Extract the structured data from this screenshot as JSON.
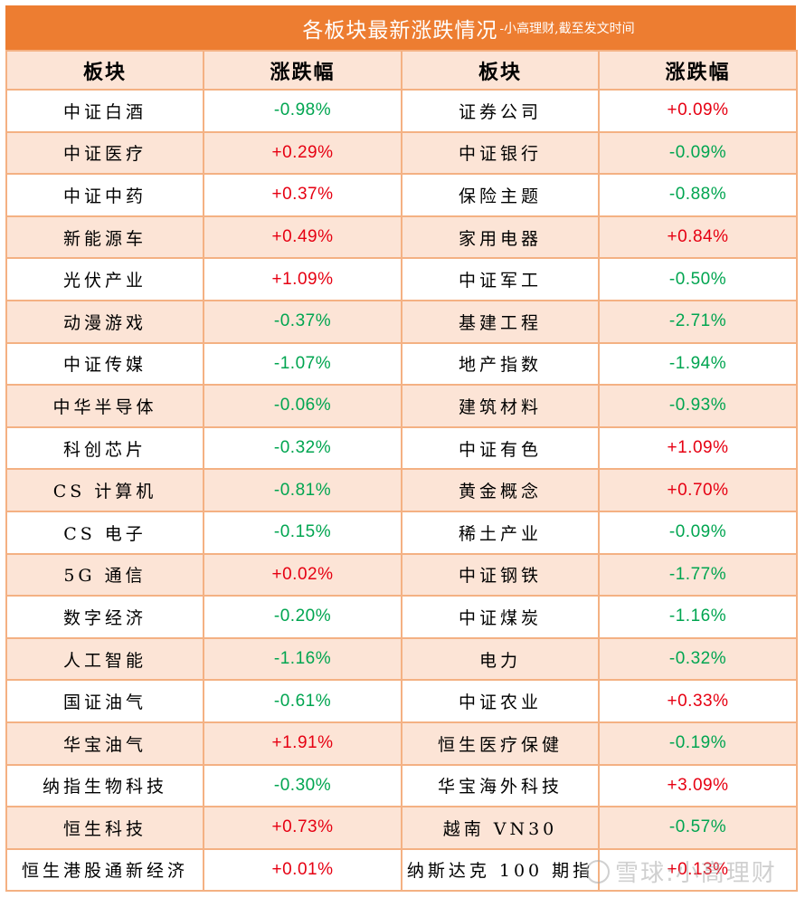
{
  "title": {
    "main": "各板块最新涨跌情况",
    "sub": "-小高理财,截至发文时间"
  },
  "header": [
    "板块",
    "涨跌幅",
    "板块",
    "涨跌幅"
  ],
  "colors": {
    "title_bg": "#ED7D31",
    "header_bg": "#FCE4D6",
    "border": "#F4B183",
    "up": "#E60012",
    "down": "#00A550"
  },
  "rows": [
    {
      "left_name": "中证白酒",
      "left_value": "-0.98%",
      "left_dir": "down",
      "right_name": "证券公司",
      "right_value": "+0.09%",
      "right_dir": "up"
    },
    {
      "left_name": "中证医疗",
      "left_value": "+0.29%",
      "left_dir": "up",
      "right_name": "中证银行",
      "right_value": "-0.09%",
      "right_dir": "down"
    },
    {
      "left_name": "中证中药",
      "left_value": "+0.37%",
      "left_dir": "up",
      "right_name": "保险主题",
      "right_value": "-0.88%",
      "right_dir": "down"
    },
    {
      "left_name": "新能源车",
      "left_value": "+0.49%",
      "left_dir": "up",
      "right_name": "家用电器",
      "right_value": "+0.84%",
      "right_dir": "up"
    },
    {
      "left_name": "光伏产业",
      "left_value": "+1.09%",
      "left_dir": "up",
      "right_name": "中证军工",
      "right_value": "-0.50%",
      "right_dir": "down"
    },
    {
      "left_name": "动漫游戏",
      "left_value": "-0.37%",
      "left_dir": "down",
      "right_name": "基建工程",
      "right_value": "-2.71%",
      "right_dir": "down"
    },
    {
      "left_name": "中证传媒",
      "left_value": "-1.07%",
      "left_dir": "down",
      "right_name": "地产指数",
      "right_value": "-1.94%",
      "right_dir": "down"
    },
    {
      "left_name": "中华半导体",
      "left_value": "-0.06%",
      "left_dir": "down",
      "right_name": "建筑材料",
      "right_value": "-0.93%",
      "right_dir": "down"
    },
    {
      "left_name": "科创芯片",
      "left_value": "-0.32%",
      "left_dir": "down",
      "right_name": "中证有色",
      "right_value": "+1.09%",
      "right_dir": "up"
    },
    {
      "left_name": "CS 计算机",
      "left_value": "-0.81%",
      "left_dir": "down",
      "right_name": "黄金概念",
      "right_value": "+0.70%",
      "right_dir": "up"
    },
    {
      "left_name": "CS 电子",
      "left_value": "-0.15%",
      "left_dir": "down",
      "right_name": "稀土产业",
      "right_value": "-0.09%",
      "right_dir": "down"
    },
    {
      "left_name": "5G 通信",
      "left_value": "+0.02%",
      "left_dir": "up",
      "right_name": "中证钢铁",
      "right_value": "-1.77%",
      "right_dir": "down"
    },
    {
      "left_name": "数字经济",
      "left_value": "-0.20%",
      "left_dir": "down",
      "right_name": "中证煤炭",
      "right_value": "-1.16%",
      "right_dir": "down"
    },
    {
      "left_name": "人工智能",
      "left_value": "-1.16%",
      "left_dir": "down",
      "right_name": "电力",
      "right_value": "-0.32%",
      "right_dir": "down"
    },
    {
      "left_name": "国证油气",
      "left_value": "-0.61%",
      "left_dir": "down",
      "right_name": "中证农业",
      "right_value": "+0.33%",
      "right_dir": "up"
    },
    {
      "left_name": "华宝油气",
      "left_value": "+1.91%",
      "left_dir": "up",
      "right_name": "恒生医疗保健",
      "right_value": "-0.19%",
      "right_dir": "down"
    },
    {
      "left_name": "纳指生物科技",
      "left_value": "-0.30%",
      "left_dir": "down",
      "right_name": "华宝海外科技",
      "right_value": "+3.09%",
      "right_dir": "up"
    },
    {
      "left_name": "恒生科技",
      "left_value": "+0.73%",
      "left_dir": "up",
      "right_name": "越南 VN30",
      "right_value": "-0.57%",
      "right_dir": "down"
    },
    {
      "left_name": "恒生港股通新经济",
      "left_value": "+0.01%",
      "left_dir": "up",
      "right_name": "纳斯达克 100 期指",
      "right_value": "+0.13%",
      "right_dir": "up"
    }
  ],
  "watermark": {
    "text": "雪球:小高理财"
  }
}
